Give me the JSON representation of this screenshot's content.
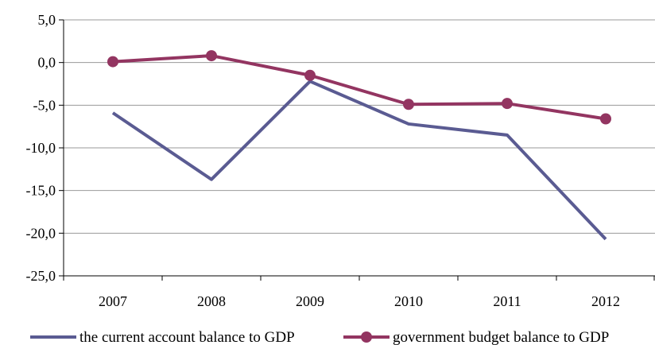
{
  "chart_data": {
    "type": "line",
    "title": "",
    "xlabel": "",
    "ylabel": "",
    "categories": [
      "2007",
      "2008",
      "2009",
      "2010",
      "2011",
      "2012"
    ],
    "ylim": [
      -25,
      5
    ],
    "yticks": [
      5,
      0,
      -5,
      -10,
      -15,
      -20,
      -25
    ],
    "ytick_labels": [
      "5,0",
      "0,0",
      "-5,0",
      "-10,0",
      "-15,0",
      "-20,0",
      "-25,0"
    ],
    "grid": true,
    "legend_position": "bottom",
    "series": [
      {
        "name": "the current account balance to GDP",
        "color": "#5a5b92",
        "marker": "none",
        "values": [
          -5.9,
          -13.7,
          -2.2,
          -7.2,
          -8.5,
          -20.7
        ]
      },
      {
        "name": "government budget balance to GDP",
        "color": "#933561",
        "marker": "circle",
        "values": [
          0.1,
          0.8,
          -1.5,
          -4.9,
          -4.8,
          -6.6
        ]
      }
    ]
  }
}
